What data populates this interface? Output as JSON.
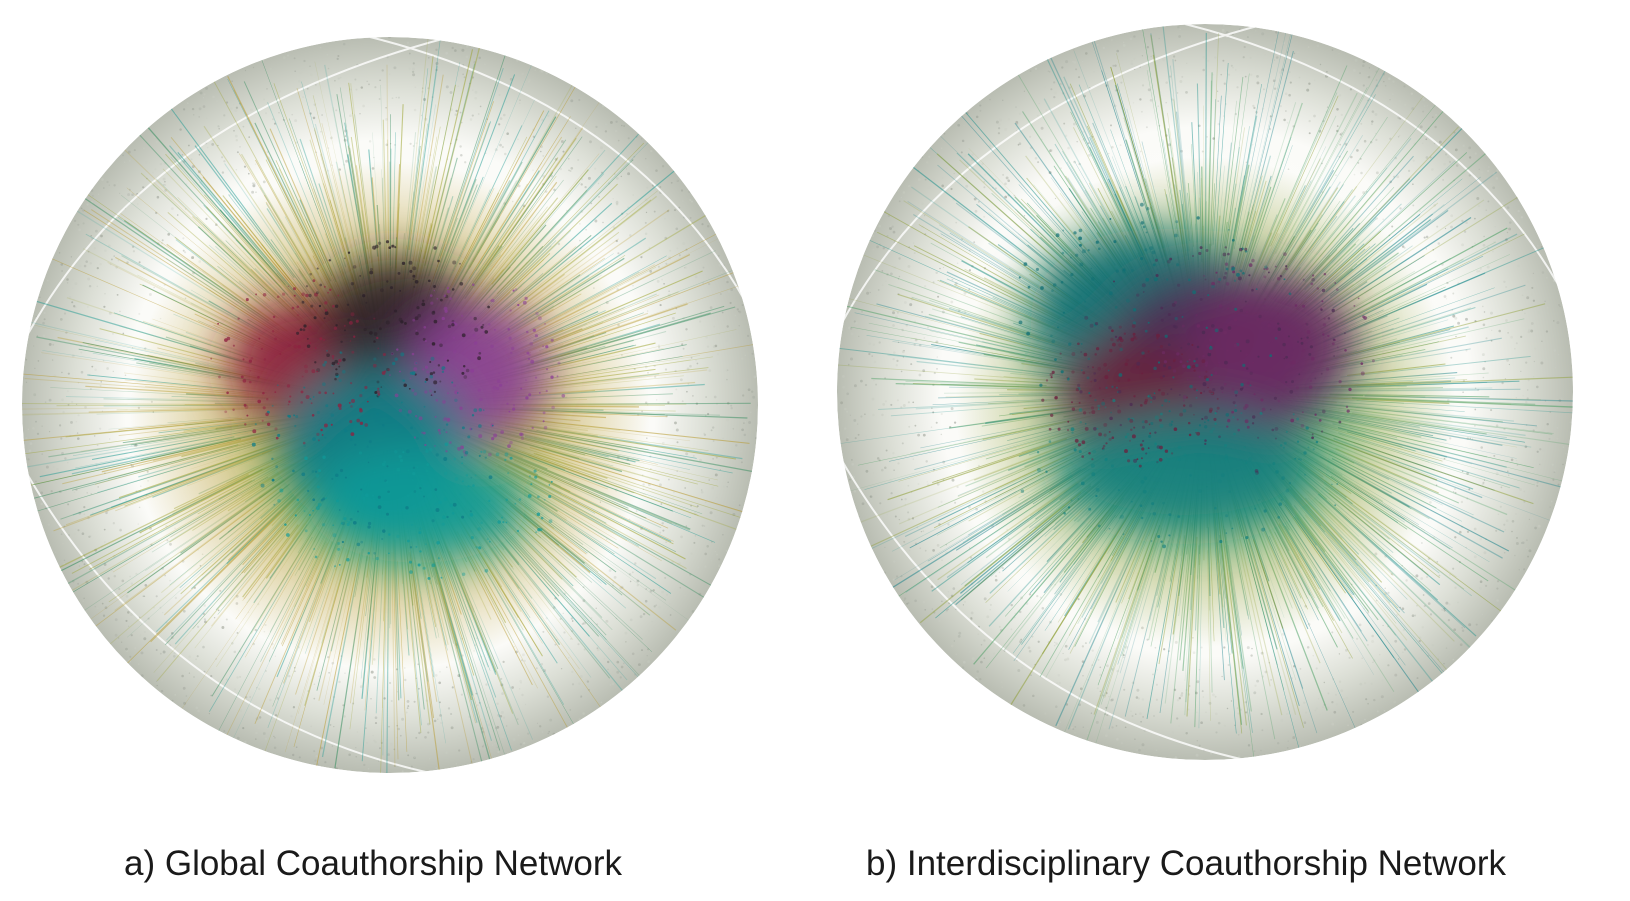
{
  "figure": {
    "panels": [
      {
        "id": "a",
        "caption": "a) Global Coauthorship Network",
        "communities": [
          {
            "color": "#8e2140"
          },
          {
            "color": "#2a1f28"
          },
          {
            "color": "#8b3f96"
          },
          {
            "color": "#0e7b86"
          },
          {
            "color": "#109a98"
          }
        ],
        "halo_colors": [
          "#2f8a5a",
          "#9aa22a",
          "#b79a2e",
          "#1f9a92"
        ],
        "rim_color": "#b9bdb2"
      },
      {
        "id": "b",
        "caption": "b) Interdisciplinary Coauthorship Network",
        "communities": [
          {
            "color": "#0f6f74"
          },
          {
            "color": "#4b2a52"
          },
          {
            "color": "#6d2b63"
          },
          {
            "color": "#6b1f3d"
          },
          {
            "color": "#14807e"
          }
        ],
        "halo_colors": [
          "#1a8f8a",
          "#3f9a5a",
          "#8d9e33",
          "#0e7c86"
        ],
        "rim_color": "#b9bdb2"
      }
    ]
  }
}
